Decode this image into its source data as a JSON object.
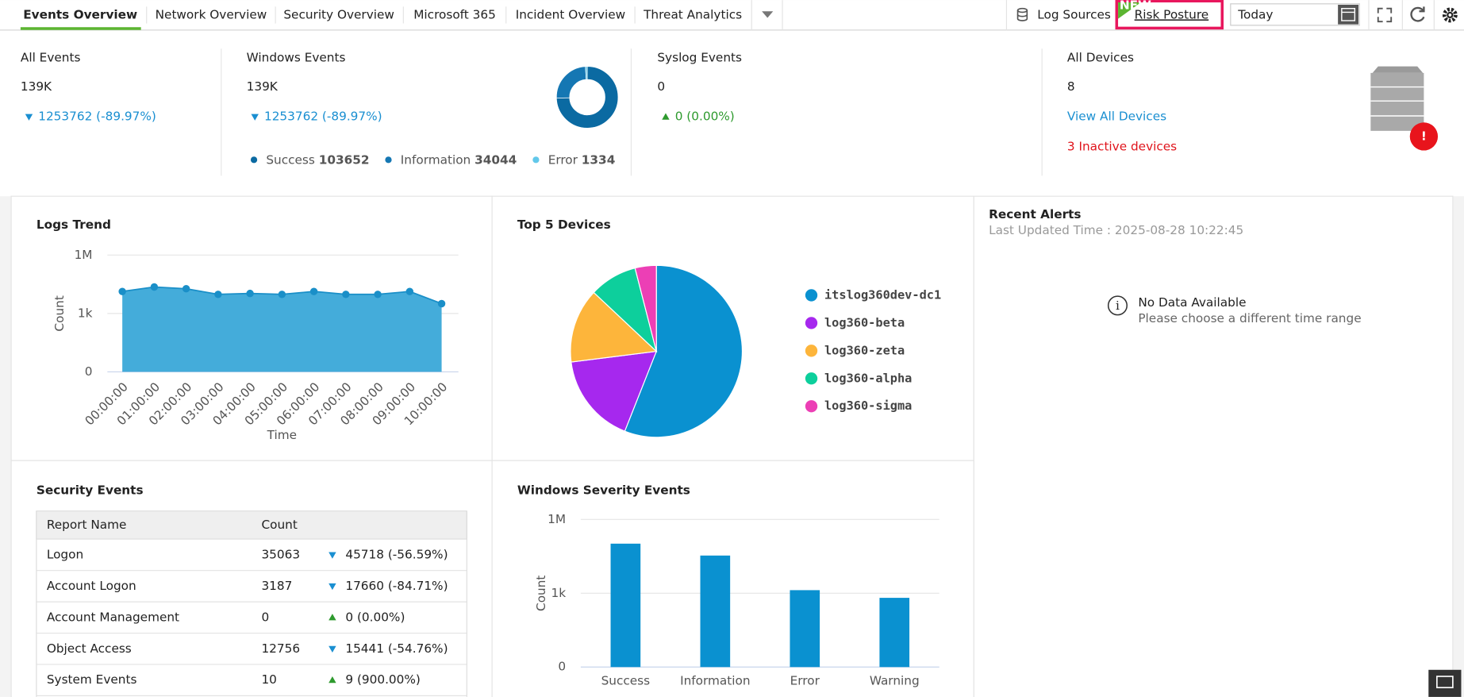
{
  "tabs": [
    "Events Overview",
    "Network Overview",
    "Security Overview",
    "Microsoft 365",
    "Incident Overview",
    "Threat Analytics"
  ],
  "toolbar": {
    "log_sources": "Log Sources",
    "new_badge": "NEW",
    "risk_posture": "Risk Posture",
    "date_range": "Today"
  },
  "kpis": {
    "all_events": {
      "label": "All Events",
      "value": "139K",
      "change": "1253762 (-89.97%)"
    },
    "windows_events": {
      "label": "Windows Events",
      "value": "139K",
      "change": "1253762 (-89.97%)",
      "legend": [
        {
          "name": "Success",
          "count": 103652,
          "color": "#0b6aa2"
        },
        {
          "name": "Information",
          "count": 34044,
          "color": "#1577b3"
        },
        {
          "name": "Error",
          "count": 1334,
          "color": "#62c8ea"
        }
      ]
    },
    "syslog_events": {
      "label": "Syslog Events",
      "value": "0",
      "change": "0 (0.00%)"
    },
    "all_devices": {
      "label": "All Devices",
      "value": "8",
      "link": "View All Devices",
      "inactive": "3 Inactive devices"
    }
  },
  "security_events": {
    "title": "Security Events",
    "columns": [
      "Report Name",
      "Count"
    ],
    "rows": [
      [
        "Logon",
        35063,
        "45718 (-56.59%)"
      ],
      [
        "Account Logon",
        3187,
        "17660 (-84.71%)"
      ],
      [
        "Account Management",
        0,
        "0 (0.00%)"
      ],
      [
        "Object Access",
        12756,
        "15441 (-54.76%)"
      ],
      [
        "System Events",
        10,
        "9 (900.00%)"
      ]
    ]
  },
  "recent_alerts": {
    "title": "Recent Alerts",
    "updated": "Last Updated Time : 2025-08-28 10:22:45",
    "empty_title": "No Data Available",
    "empty_hint": "Please choose a different time range"
  },
  "chart_data": [
    {
      "type": "area",
      "title": "Logs Trend",
      "x_label": "Time",
      "y_label": "Count",
      "categories": [
        "00:00:00",
        "01:00:00",
        "02:00:00",
        "03:00:00",
        "04:00:00",
        "05:00:00",
        "06:00:00",
        "07:00:00",
        "08:00:00",
        "09:00:00",
        "10:00:00"
      ],
      "values": [
        13500,
        23000,
        18700,
        9600,
        10700,
        9600,
        13500,
        9600,
        9600,
        13500,
        3200
      ],
      "color": "#3aa8d8",
      "log_y": true,
      "grid": true,
      "ylim": [
        0,
        1000000
      ],
      "yticks": [
        0,
        {
          "value": 1000,
          "label": "1k"
        },
        {
          "value": 1000000,
          "label": "1M"
        }
      ]
    },
    {
      "type": "pie",
      "title": "Top 5 Devices",
      "categories": [
        "itslog360dev-dc1",
        "log360-beta",
        "log360-zeta",
        "log360-alpha",
        "log360-sigma"
      ],
      "values": [
        56,
        17,
        14,
        9,
        4
      ],
      "colors": [
        "#0a91d0",
        "#a628ee",
        "#fdb53b",
        "#0dcf9c",
        "#ec3fb5"
      ]
    },
    {
      "type": "bar",
      "title": "Windows Severity Events",
      "y_label": "Count",
      "categories": [
        "Success",
        "Information",
        "Error",
        "Warning"
      ],
      "values": [
        103652,
        34044,
        1334,
        650
      ],
      "color": "#0a91d0",
      "log_y": true,
      "grid": true,
      "ylim": [
        0,
        1000000
      ],
      "yticks": [
        0,
        {
          "value": 1000,
          "label": "1k"
        },
        {
          "value": 1000000,
          "label": "1M"
        }
      ]
    }
  ]
}
